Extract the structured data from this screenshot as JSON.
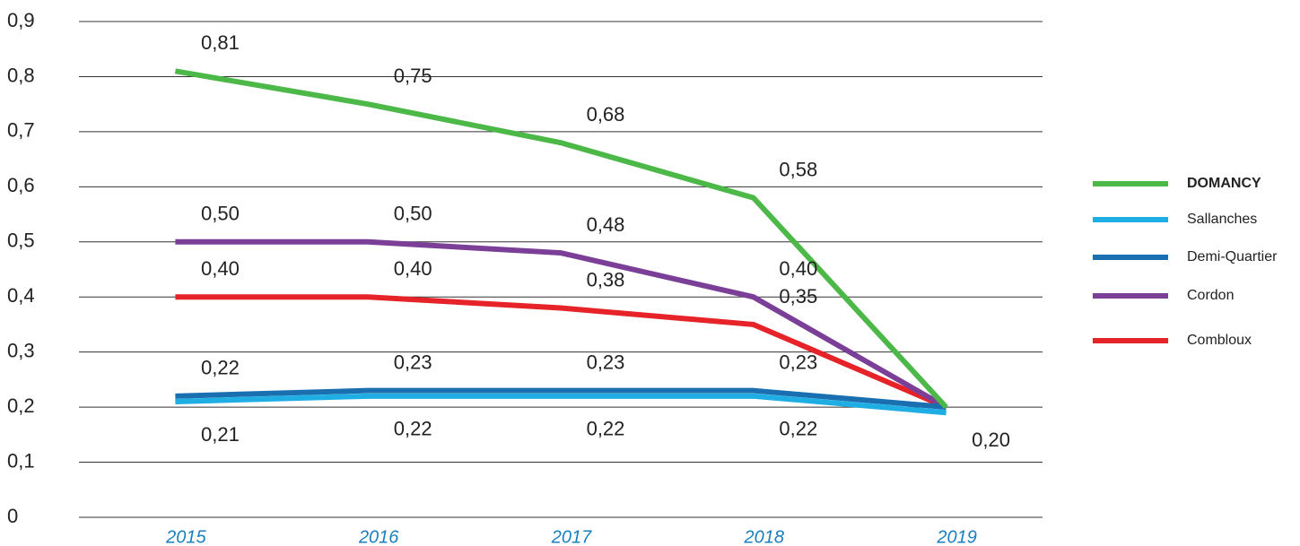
{
  "chart_data": {
    "type": "line",
    "categories": [
      "2015",
      "2016",
      "2017",
      "2018",
      "2019"
    ],
    "series": [
      {
        "name": "DOMANCY",
        "color": "#4cb848",
        "values": [
          0.81,
          0.75,
          0.68,
          0.58,
          0.2
        ],
        "value_labels": [
          "0,81",
          "0,75",
          "0,68",
          "0,58",
          "0,20"
        ]
      },
      {
        "name": "Sallanches",
        "color": "#1eaee4",
        "values": [
          0.21,
          0.22,
          0.22,
          0.22,
          0.19
        ],
        "value_labels": [
          "0,21",
          "0,22",
          "0,22",
          "0,22",
          null
        ]
      },
      {
        "name": "Demi-Quartier",
        "color": "#1a6fb0",
        "values": [
          0.22,
          0.23,
          0.23,
          0.23,
          0.2
        ],
        "value_labels": [
          "0,22",
          "0,23",
          "0,23",
          "0,23",
          null
        ]
      },
      {
        "name": "Cordon",
        "color": "#7b3f98",
        "values": [
          0.5,
          0.5,
          0.48,
          0.4,
          0.2
        ],
        "value_labels": [
          "0,50",
          "0,50",
          "0,48",
          "0,40",
          null
        ]
      },
      {
        "name": "Combloux",
        "color": "#e52329",
        "values": [
          0.4,
          0.4,
          0.38,
          0.35,
          0.2
        ],
        "value_labels": [
          "0,40",
          "0,40",
          "0,38",
          "0,35",
          null
        ]
      }
    ],
    "ylim": [
      0,
      0.9
    ],
    "yticks": [
      0,
      {
        "value": 0.1,
        "label": "0,1"
      },
      {
        "value": 0.2,
        "label": "0,2"
      },
      {
        "value": 0.3,
        "label": "0,3"
      },
      {
        "value": 0.4,
        "label": "0,4"
      },
      {
        "value": 0.5,
        "label": "0,5"
      },
      {
        "value": 0.6,
        "label": "0,6"
      },
      {
        "value": 0.7,
        "label": "0,7"
      },
      {
        "value": 0.8,
        "label": "0,8"
      },
      {
        "value": 0.9,
        "label": "0,9"
      }
    ],
    "grid": true,
    "legend": "right"
  }
}
